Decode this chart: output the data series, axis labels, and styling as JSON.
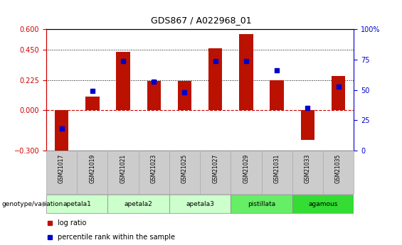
{
  "title": "GDS867 / A022968_01",
  "samples": [
    "GSM21017",
    "GSM21019",
    "GSM21021",
    "GSM21023",
    "GSM21025",
    "GSM21027",
    "GSM21029",
    "GSM21031",
    "GSM21033",
    "GSM21035"
  ],
  "log_ratio": [
    -0.335,
    0.1,
    0.435,
    0.215,
    0.215,
    0.46,
    0.565,
    0.225,
    -0.22,
    0.255
  ],
  "percentile_rank": [
    18,
    49,
    74,
    57,
    48,
    74,
    74,
    66,
    35,
    53
  ],
  "bar_color": "#bb1100",
  "dot_color": "#0000cc",
  "ylim_left": [
    -0.3,
    0.6
  ],
  "ylim_right": [
    0,
    100
  ],
  "yticks_left": [
    -0.3,
    0.0,
    0.225,
    0.45,
    0.6
  ],
  "yticks_right": [
    0,
    25,
    50,
    75,
    100
  ],
  "hlines": [
    0.225,
    0.45
  ],
  "hline_zero_color": "#cc0000",
  "group_spans": [
    {
      "label": "apetala1",
      "start": 0,
      "end": 2,
      "color": "#ccffcc"
    },
    {
      "label": "apetala2",
      "start": 2,
      "end": 4,
      "color": "#ccffcc"
    },
    {
      "label": "apetala3",
      "start": 4,
      "end": 6,
      "color": "#ccffcc"
    },
    {
      "label": "pistillata",
      "start": 6,
      "end": 8,
      "color": "#66ee66"
    },
    {
      "label": "agamous",
      "start": 8,
      "end": 10,
      "color": "#33dd33"
    }
  ],
  "sample_box_color": "#cccccc",
  "sample_box_edge": "#aaaaaa",
  "group_label": "genotype/variation",
  "legend_items": [
    "log ratio",
    "percentile rank within the sample"
  ]
}
